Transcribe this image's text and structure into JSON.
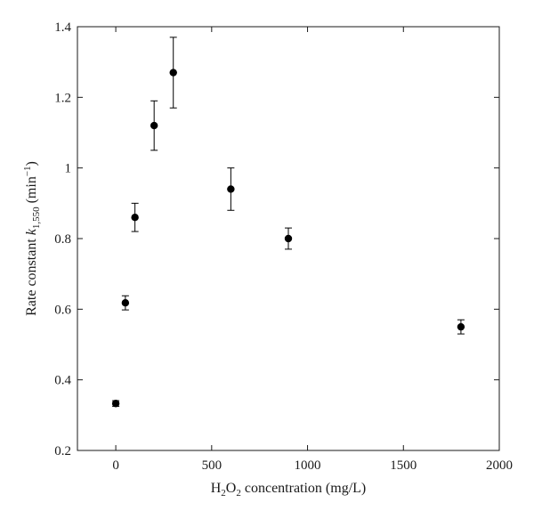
{
  "chart_data": {
    "type": "scatter",
    "xlabel_parts": [
      "H",
      "2",
      "O",
      "2",
      " concentration (mg/L)"
    ],
    "ylabel_parts": [
      "Rate constant ",
      "k",
      "1,550",
      " (min",
      "−1",
      ")"
    ],
    "xlim": [
      -200,
      2000
    ],
    "ylim": [
      0.2,
      1.4
    ],
    "x_ticks": [
      0,
      500,
      1000,
      1500,
      2000
    ],
    "x_tick_labels": [
      "0",
      "500",
      "1000",
      "1500",
      "2000"
    ],
    "y_ticks": [
      0.2,
      0.4,
      0.6,
      0.8,
      1.0,
      1.2,
      1.4
    ],
    "y_tick_labels": [
      "0.2",
      "0.4",
      "0.6",
      "0.8",
      "1",
      "1.2",
      "1.4"
    ],
    "grid": false,
    "legend": "none",
    "marker_color": "#000000",
    "points": [
      {
        "x": 0,
        "y": 0.333,
        "err": 0.008
      },
      {
        "x": 50,
        "y": 0.618,
        "err": 0.02
      },
      {
        "x": 100,
        "y": 0.86,
        "err": 0.04
      },
      {
        "x": 200,
        "y": 1.12,
        "err": 0.07
      },
      {
        "x": 300,
        "y": 1.27,
        "err": 0.1
      },
      {
        "x": 600,
        "y": 0.94,
        "err": 0.06
      },
      {
        "x": 900,
        "y": 0.8,
        "err": 0.03
      },
      {
        "x": 1800,
        "y": 0.55,
        "err": 0.02
      }
    ]
  }
}
